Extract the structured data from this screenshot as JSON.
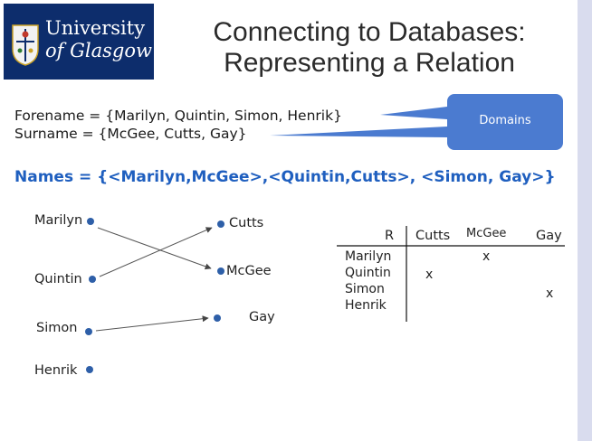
{
  "logo": {
    "line1": "University",
    "line2": "of Glasgow"
  },
  "title": {
    "line1": "Connecting to Databases:",
    "line2": "Representing a Relation"
  },
  "domains": {
    "forename": "Forename = {Marilyn, Quintin, Simon, Henrik}",
    "surname": "Surname = {McGee, Cutts, Gay}",
    "callout": "Domains"
  },
  "names_line": "Names = {<Marilyn,McGee>,<Quintin,Cutts>, <Simon, Gay>}",
  "mapping": {
    "left": [
      "Marilyn",
      "Quintin",
      "Simon",
      "Henrik"
    ],
    "right": [
      "Cutts",
      "McGee",
      "Gay"
    ]
  },
  "relation_table": {
    "corner": "R",
    "columns": [
      "Cutts",
      "McGee",
      "Gay"
    ],
    "rows": [
      "Marilyn",
      "Quintin",
      "Simon",
      "Henrik"
    ],
    "mark": "x",
    "marks": {
      "Marilyn": "McGee",
      "Quintin": "Cutts",
      "Simon": "Gay"
    }
  },
  "colors": {
    "logo_bg": "#0d2d6c",
    "callout_bg": "#4b7bd0",
    "names_text": "#1f5fbf",
    "node_dot": "#2e5fa8",
    "sidebar": "#d9dcee"
  }
}
